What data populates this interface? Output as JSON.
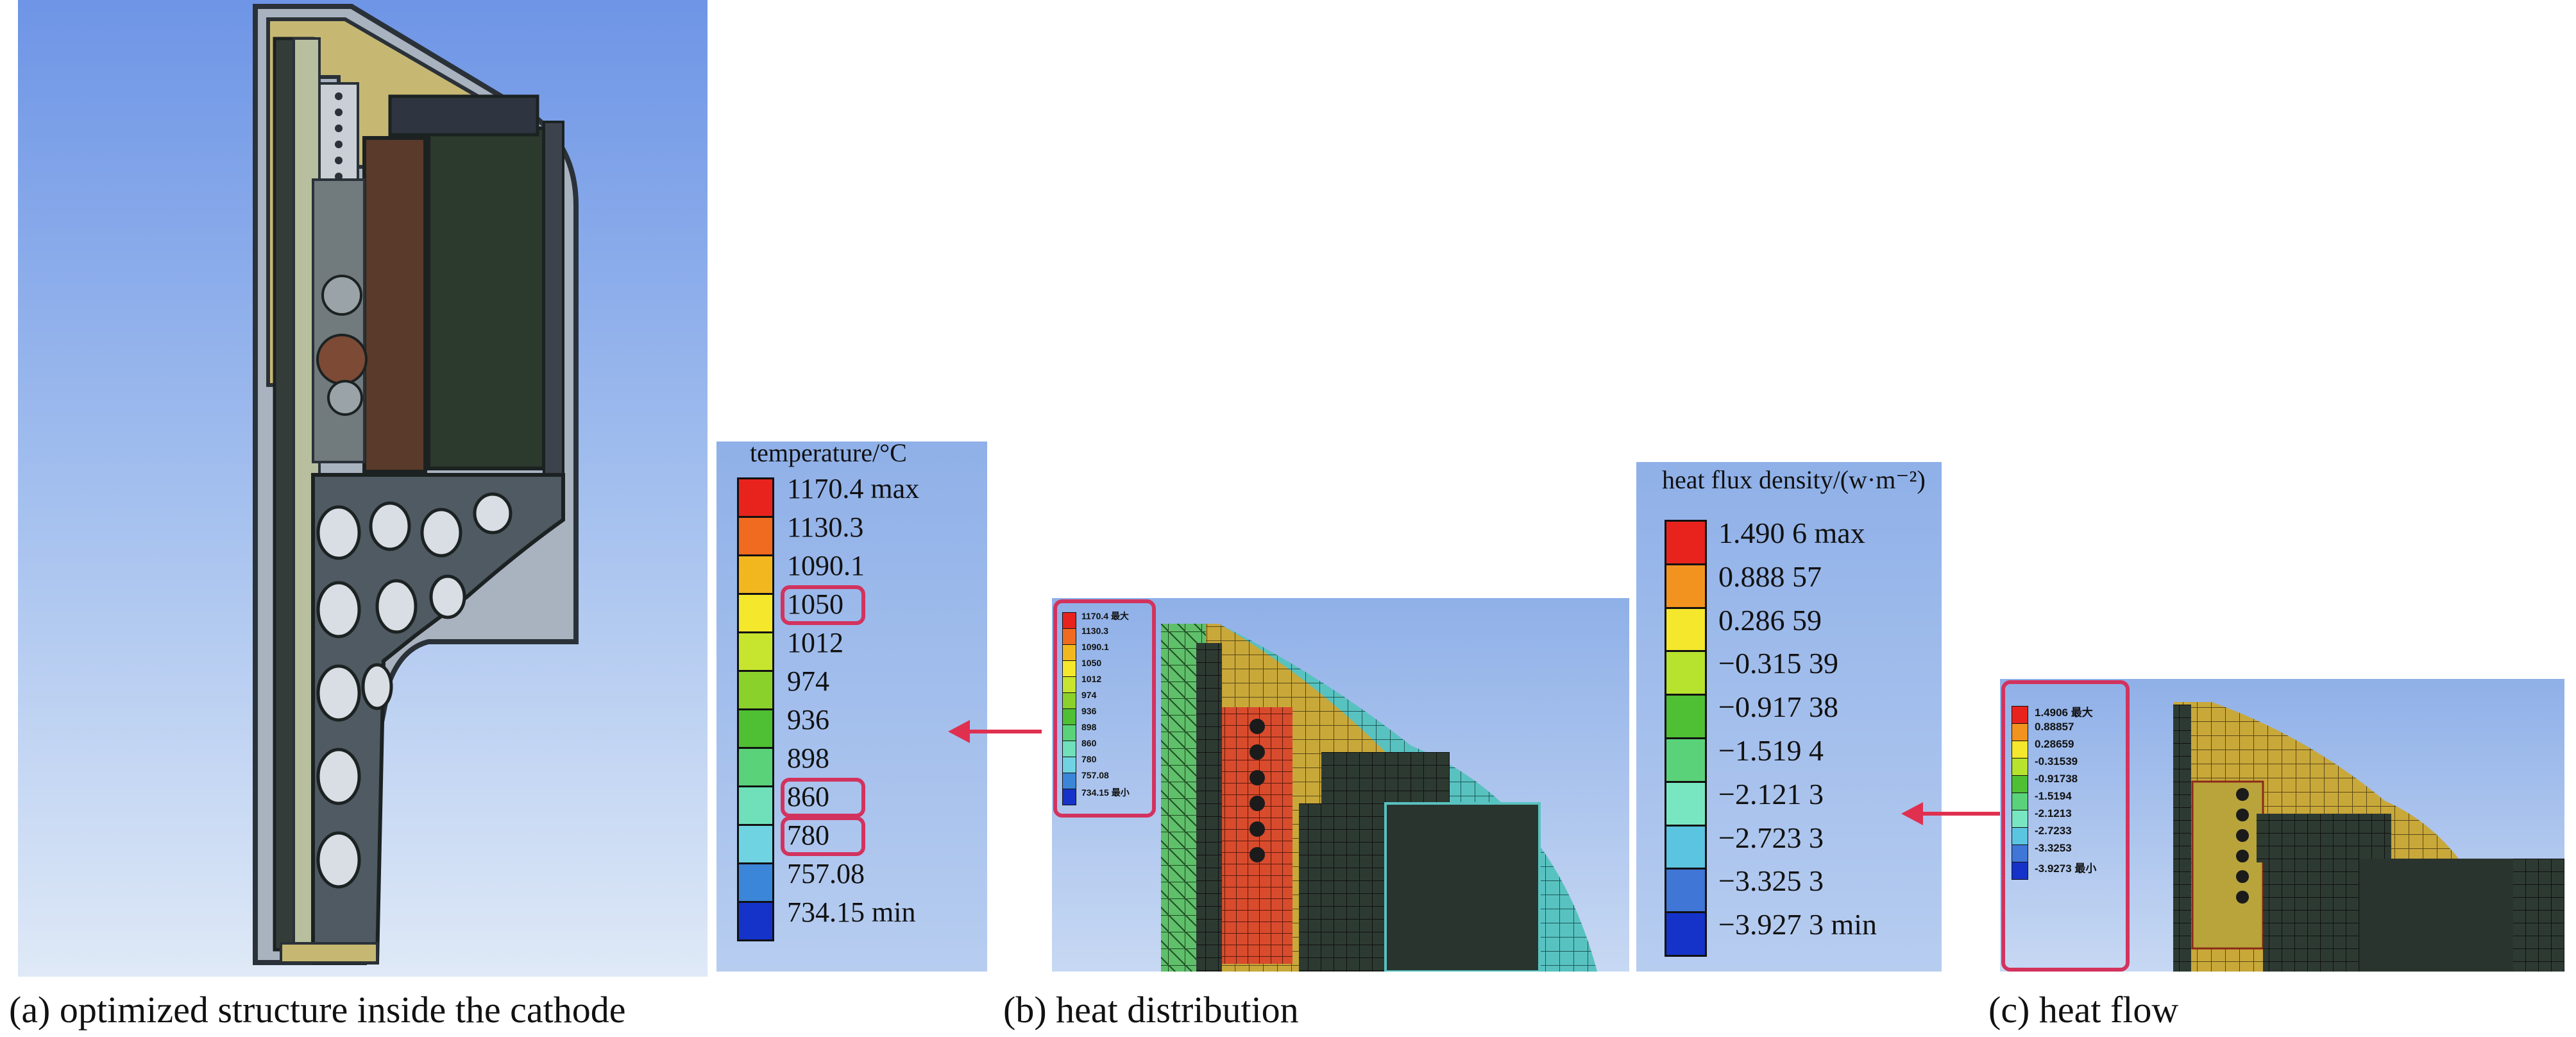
{
  "captions": {
    "a": "(a) optimized structure inside the cathode",
    "b": "(b) heat distribution",
    "c": "(c) heat flow"
  },
  "temperature_legend": {
    "title": "temperature/°C",
    "entries": [
      "1170.4 max",
      "1130.3",
      "1090.1",
      "1050",
      "1012",
      "974",
      "936",
      "898",
      "860",
      "780",
      "757.08",
      "734.15 min"
    ],
    "highlighted": [
      "1050",
      "860",
      "780"
    ]
  },
  "heat_distribution_mini_legend": {
    "entries": [
      "1170.4 最大",
      "1130.3",
      "1090.1",
      "1050",
      "1012",
      "974",
      "936",
      "898",
      "860",
      "780",
      "757.08",
      "734.15 最小"
    ]
  },
  "heat_flux_legend": {
    "title": "heat flux density/(w·m⁻²)",
    "entries": [
      "1.490 6 max",
      "0.888 57",
      "0.286 59",
      "−0.315 39",
      "−0.917 38",
      "−1.519 4",
      "−2.121 3",
      "−2.723 3",
      "−3.325 3",
      "−3.927 3 min"
    ]
  },
  "heat_flow_mini_legend": {
    "entries": [
      "1.4906 最大",
      "0.88857",
      "0.28659",
      "-0.31539",
      "-0.91738",
      "-1.5194",
      "-2.1213",
      "-2.7233",
      "-3.3253",
      "-3.9273 最小"
    ]
  },
  "colors": {
    "temp_scale": [
      "#e8231d",
      "#f06a1f",
      "#f2b71f",
      "#f4e72c",
      "#c7e52f",
      "#8bd12c",
      "#4fbf33",
      "#5ad27a",
      "#6fe0b9",
      "#6fd3e2",
      "#3b86d8",
      "#1533c9"
    ],
    "flux_scale": [
      "#e8231d",
      "#f3931f",
      "#f4e72c",
      "#b7e22e",
      "#4fbf33",
      "#5ad27a",
      "#79e6c2",
      "#5bc4e0",
      "#4076d6",
      "#1533c9"
    ],
    "highlight": "#d2335e",
    "arrow": "#e0304f",
    "mesh_yellow": "#c9a83a",
    "mesh_cyan": "#58c2c0",
    "mesh_green": "#5fbf6a",
    "mesh_red": "#d94b2d",
    "mesh_dark": "#2d3a32"
  }
}
